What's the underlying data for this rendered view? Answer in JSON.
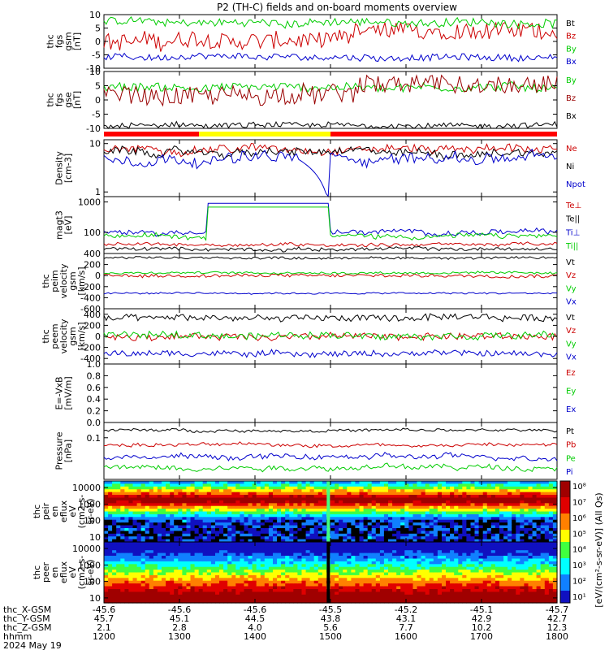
{
  "title": "P2 (TH-C) fields and on-board moments overview",
  "chart_data": [
    {
      "type": "line",
      "panel": "fgs-gsm",
      "ylabel": [
        "thc",
        "fgs",
        "gsm",
        "[nT]"
      ],
      "ylim": [
        -10,
        10
      ],
      "yticks": [
        -10,
        -5,
        0,
        5,
        10
      ],
      "series": [
        {
          "name": "Bt",
          "color": "#000000",
          "base": 12.5,
          "noise": 1.2
        },
        {
          "name": "Bz",
          "color": "#cc0000",
          "base": 0,
          "noise": 3.2
        },
        {
          "name": "By",
          "color": "#00cc00",
          "base": 7,
          "noise": 1.5
        },
        {
          "name": "Bx",
          "color": "#0000cc",
          "base": -6,
          "noise": 1.2
        }
      ]
    },
    {
      "type": "line",
      "panel": "fgs-gse",
      "ylabel": [
        "thc",
        "fgs",
        "gse",
        "[nT]"
      ],
      "ylim": [
        -10,
        10
      ],
      "yticks": [
        -10,
        -5,
        0,
        5,
        10
      ],
      "series": [
        {
          "name": "By",
          "color": "#00cc00",
          "base": 4.5,
          "noise": 1.5
        },
        {
          "name": "Bz",
          "color": "#990000",
          "base": 1.5,
          "noise": 3.2
        },
        {
          "name": "Bx",
          "color": "#000000",
          "base": -9,
          "noise": 1.0
        }
      ]
    },
    {
      "type": "line",
      "panel": "density",
      "yscale": "log",
      "ylabel": [
        "Density",
        "[cm-3]"
      ],
      "ylim": [
        0.8,
        12
      ],
      "yticks": [
        1,
        10
      ],
      "series": [
        {
          "name": "Ne",
          "color": "#cc0000",
          "base": 8,
          "noise": 0.15
        },
        {
          "name": "Ni",
          "color": "#000000",
          "base": 6.5,
          "noise": 0.15
        },
        {
          "name": "Npot",
          "color": "#0000cc",
          "base": 5,
          "noise": 0.2
        }
      ]
    },
    {
      "type": "line",
      "panel": "temperature",
      "yscale": "log",
      "ylabel": [
        "magt3",
        "[eV]"
      ],
      "ylim": [
        20,
        1500
      ],
      "yticks": [
        100,
        1000
      ],
      "series": [
        {
          "name": "Te⊥",
          "color": "#cc0000",
          "base": 40,
          "noise": 0.1
        },
        {
          "name": "Te||",
          "color": "#000000",
          "base": 28,
          "noise": 0.1
        },
        {
          "name": "Ti⊥",
          "color": "#0000cc",
          "base": 100,
          "noise": 0.15
        },
        {
          "name": "Ti||",
          "color": "#00cc00",
          "base": 75,
          "noise": 0.15
        }
      ]
    },
    {
      "type": "line",
      "panel": "ion-velocity",
      "ylabel": [
        "thc",
        "peim",
        "velocity",
        "gsm",
        "[km/s]"
      ],
      "ylim": [
        -600,
        400
      ],
      "yticks": [
        -600,
        -400,
        -200,
        0,
        200,
        400
      ],
      "series": [
        {
          "name": "Vt",
          "color": "#000000",
          "base": 320,
          "noise": 20
        },
        {
          "name": "Vz",
          "color": "#cc0000",
          "base": 0,
          "noise": 30
        },
        {
          "name": "Vy",
          "color": "#00cc00",
          "base": 50,
          "noise": 20
        },
        {
          "name": "Vx",
          "color": "#0000cc",
          "base": -320,
          "noise": 15
        }
      ]
    },
    {
      "type": "line",
      "panel": "electron-velocity",
      "ylabel": [
        "thc",
        "peem",
        "velocity",
        "gsm",
        "[km/s]"
      ],
      "ylim": [
        -500,
        500
      ],
      "yticks": [
        -400,
        -200,
        0,
        200,
        400
      ],
      "series": [
        {
          "name": "Vt",
          "color": "#000000",
          "base": 330,
          "noise": 60
        },
        {
          "name": "Vz",
          "color": "#cc0000",
          "base": 0,
          "noise": 60
        },
        {
          "name": "Vy",
          "color": "#00cc00",
          "base": 20,
          "noise": 60
        },
        {
          "name": "Vx",
          "color": "#0000cc",
          "base": -310,
          "noise": 50
        }
      ]
    },
    {
      "type": "line",
      "panel": "e-field",
      "ylabel": [
        "E=-VxB",
        "[mV/m]"
      ],
      "ylim": [
        0,
        1
      ],
      "yticks": [
        0.0,
        0.2,
        0.4,
        0.6,
        0.8,
        1.0
      ],
      "ytick_labels": [
        "0.0",
        "0.2",
        "0.4",
        "0.6",
        "0.8",
        "1.0"
      ],
      "series": [
        {
          "name": "Ez",
          "color": "#cc0000"
        },
        {
          "name": "Ey",
          "color": "#00cc00"
        },
        {
          "name": "Ex",
          "color": "#0000cc"
        }
      ]
    },
    {
      "type": "line",
      "panel": "pressure",
      "yscale": "log",
      "ylabel": [
        "Pressure",
        "[nPa]"
      ],
      "ylim": [
        0.005,
        0.3
      ],
      "yticks": [
        0.1
      ],
      "ytick_labels": [
        "0.1"
      ],
      "series": [
        {
          "name": "Pt",
          "color": "#000000",
          "base": 0.17,
          "noise": 0.08
        },
        {
          "name": "Pb",
          "color": "#cc0000",
          "base": 0.06,
          "noise": 0.1
        },
        {
          "name": "Pe",
          "color": "#00cc00",
          "base": 0.012,
          "noise": 0.15
        },
        {
          "name": "Pi",
          "color": "#0000cc",
          "base": 0.025,
          "noise": 0.15
        }
      ]
    },
    {
      "type": "heatmap",
      "panel": "ion-spectrogram",
      "ylabel": [
        "thc",
        "peir",
        "en",
        "eflux",
        "eV",
        "(cm2-s-",
        "sr-eV)"
      ],
      "yscale": "log",
      "ylim": [
        5,
        25000
      ],
      "yticks": [
        10,
        100,
        1000,
        10000
      ],
      "ytick_labels": [
        "10",
        "100",
        "1000",
        "10000"
      ]
    },
    {
      "type": "heatmap",
      "panel": "electron-spectrogram",
      "ylabel": [
        "thc",
        "peer",
        "en",
        "eflux",
        "eV",
        "(cm2-s-",
        "sr-eV)"
      ],
      "yscale": "log",
      "ylim": [
        5,
        25000
      ],
      "yticks": [
        10,
        100,
        1000,
        10000
      ],
      "ytick_labels": [
        "10",
        "100",
        "1000",
        "10000"
      ]
    }
  ],
  "colorbar": {
    "tick_labels": [
      "10⁸",
      "10⁷",
      "10⁶",
      "10⁵",
      "10⁴",
      "10³",
      "10²",
      "10¹"
    ],
    "label": "[eV/(cm²-s-sr-eV)] (All Qs)"
  },
  "mode_bar": {
    "segments": [
      {
        "from": 0,
        "to": 0.21,
        "color": "#ff0000"
      },
      {
        "from": 0.21,
        "to": 0.5,
        "color": "#ffff00"
      },
      {
        "from": 0.5,
        "to": 1,
        "color": "#ff0000"
      }
    ]
  },
  "time_axis": {
    "hhmm": [
      "1200",
      "1300",
      "1400",
      "1500",
      "1600",
      "1700",
      "1800"
    ],
    "rows": [
      {
        "label": "thc_X-GSM",
        "values": [
          "-45.6",
          "-45.6",
          "-45.6",
          "-45.5",
          "-45.2",
          "-45.1",
          "-45.7"
        ]
      },
      {
        "label": "thc_Y-GSM",
        "values": [
          "45.7",
          "45.1",
          "44.5",
          "43.8",
          "43.1",
          "42.9",
          "42.7"
        ]
      },
      {
        "label": "thc_Z-GSM",
        "values": [
          "2.1",
          "2.8",
          "4.0",
          "5.6",
          "7.7",
          "10.2",
          "12.3"
        ]
      }
    ],
    "hhmm_label": "hhmm",
    "date": "2024 May 19"
  }
}
